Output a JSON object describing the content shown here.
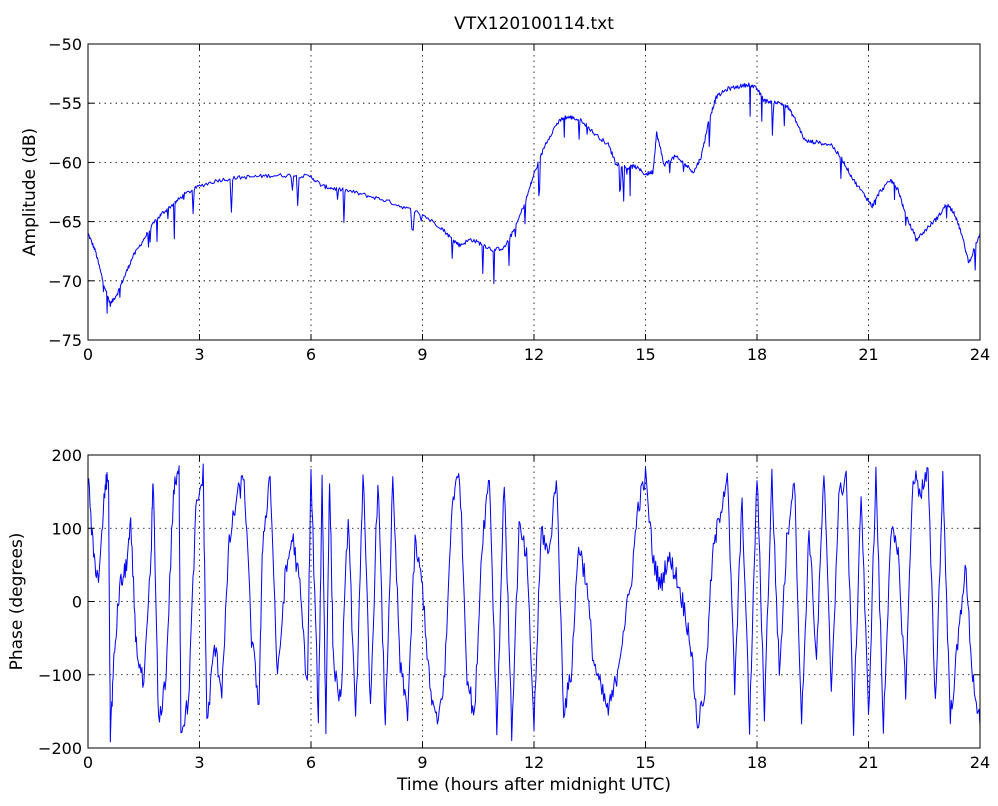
{
  "chart_data": [
    {
      "type": "line",
      "title": "VTX120100114.txt",
      "xlabel": "",
      "ylabel": "Amplitude (dB)",
      "xlim": [
        0,
        24
      ],
      "ylim": [
        -75,
        -50
      ],
      "xticks": [
        0,
        3,
        6,
        9,
        12,
        15,
        18,
        21,
        24
      ],
      "yticks": [
        -75,
        -70,
        -65,
        -60,
        -55,
        -50
      ],
      "xtick_labels": [
        "0",
        "3",
        "6",
        "9",
        "12",
        "15",
        "18",
        "21",
        "24"
      ],
      "ytick_labels": [
        "−75",
        "−70",
        "−65",
        "−60",
        "−55",
        "−50"
      ],
      "grid": true,
      "color": "#0000ff",
      "series": [
        {
          "x": [
            0,
            0.2,
            0.4,
            0.6,
            0.8,
            1.0,
            1.2,
            1.5,
            1.8,
            2.0,
            2.3,
            2.6,
            3.0,
            3.5,
            4.0,
            4.5,
            5.0,
            5.5,
            6.0,
            6.3,
            6.6,
            7.0,
            7.5,
            8.0,
            8.5,
            9.0,
            9.5,
            9.8,
            10.0,
            10.3,
            10.6,
            10.9,
            11.2,
            11.5,
            11.8,
            12.0,
            12.3,
            12.6,
            12.8,
            13.0,
            13.3,
            13.6,
            14.0,
            14.2,
            14.5,
            14.7,
            15.0,
            15.2,
            15.3,
            15.5,
            15.8,
            16.0,
            16.3,
            16.5,
            16.7,
            16.9,
            17.2,
            17.5,
            17.8,
            18.0,
            18.2,
            18.5,
            18.8,
            19.0,
            19.3,
            19.6,
            20.0,
            20.3,
            20.6,
            20.9,
            21.1,
            21.3,
            21.6,
            21.8,
            22.0,
            22.3,
            22.6,
            22.9,
            23.1,
            23.3,
            23.5,
            23.7,
            24.0
          ],
          "y": [
            -66,
            -67.5,
            -70,
            -72,
            -71,
            -69.5,
            -68,
            -66.5,
            -65,
            -64.3,
            -63.5,
            -62.7,
            -62,
            -61.5,
            -61.3,
            -61.2,
            -61.1,
            -61.1,
            -61.2,
            -62,
            -62.2,
            -62.4,
            -62.8,
            -63.2,
            -63.8,
            -64.4,
            -65.5,
            -66.5,
            -67,
            -66.5,
            -66.9,
            -67.4,
            -67.2,
            -65.5,
            -63,
            -61,
            -58.5,
            -56.8,
            -56.2,
            -56.2,
            -56.5,
            -57.5,
            -58.5,
            -60,
            -60.5,
            -60.3,
            -61,
            -60.8,
            -57.5,
            -60.2,
            -59.5,
            -60,
            -60.8,
            -59.5,
            -56.5,
            -54.5,
            -53.8,
            -53.6,
            -53.4,
            -53.8,
            -54.8,
            -54.9,
            -55.2,
            -56.2,
            -58.2,
            -58.3,
            -58.5,
            -59.8,
            -61.5,
            -62.8,
            -63.7,
            -62.5,
            -61.5,
            -62.3,
            -64.5,
            -66.5,
            -65.5,
            -64.5,
            -63.5,
            -64.2,
            -66,
            -68.5,
            -66
          ]
        }
      ]
    },
    {
      "type": "line",
      "title": "",
      "xlabel": "Time (hours after midnight UTC)",
      "ylabel": "Phase (degrees)",
      "xlim": [
        0,
        24
      ],
      "ylim": [
        -200,
        200
      ],
      "xticks": [
        0,
        3,
        6,
        9,
        12,
        15,
        18,
        21,
        24
      ],
      "yticks": [
        -200,
        -100,
        0,
        100,
        200
      ],
      "xtick_labels": [
        "0",
        "3",
        "6",
        "9",
        "12",
        "15",
        "18",
        "21",
        "24"
      ],
      "ytick_labels": [
        "−200",
        "−100",
        "0",
        "100",
        "200"
      ],
      "grid": true,
      "color": "#0000ff",
      "series": [
        {
          "x": [
            0,
            0.15,
            0.3,
            0.45,
            0.55,
            0.6,
            0.7,
            0.85,
            1.0,
            1.15,
            1.3,
            1.5,
            1.7,
            1.75,
            1.9,
            2.1,
            2.3,
            2.45,
            2.5,
            2.7,
            2.9,
            3.1,
            3.2,
            3.4,
            3.6,
            3.8,
            4.0,
            4.2,
            4.4,
            4.6,
            4.7,
            4.9,
            5.1,
            5.3,
            5.5,
            5.7,
            5.9,
            6.0,
            6.2,
            6.3,
            6.4,
            6.5,
            6.6,
            6.8,
            7.0,
            7.2,
            7.4,
            7.6,
            7.8,
            8.0,
            8.2,
            8.4,
            8.6,
            8.8,
            9.0,
            9.2,
            9.4,
            9.6,
            9.8,
            10.0,
            10.2,
            10.4,
            10.6,
            10.8,
            11.0,
            11.2,
            11.4,
            11.6,
            11.8,
            12.0,
            12.2,
            12.4,
            12.6,
            12.8,
            13.0,
            13.2,
            13.4,
            13.6,
            13.8,
            14.0,
            14.2,
            14.4,
            14.6,
            14.8,
            15.0,
            15.2,
            15.4,
            15.6,
            15.8,
            16.0,
            16.2,
            16.4,
            16.6,
            16.8,
            17.0,
            17.2,
            17.4,
            17.6,
            17.8,
            18.0,
            18.2,
            18.4,
            18.6,
            18.8,
            19.0,
            19.2,
            19.4,
            19.6,
            19.8,
            20.0,
            20.2,
            20.4,
            20.6,
            20.8,
            21.0,
            21.2,
            21.4,
            21.6,
            21.8,
            22.0,
            22.2,
            22.4,
            22.6,
            22.8,
            23.0,
            23.2,
            23.4,
            23.6,
            23.8,
            24.0
          ],
          "y": [
            170,
            60,
            30,
            150,
            175,
            -180,
            -80,
            20,
            40,
            100,
            -60,
            -120,
            60,
            175,
            -170,
            -100,
            150,
            175,
            -175,
            -140,
            120,
            175,
            -170,
            -60,
            -120,
            80,
            140,
            170,
            -50,
            -140,
            80,
            175,
            -110,
            30,
            90,
            20,
            -120,
            175,
            -160,
            170,
            -175,
            175,
            -80,
            -140,
            120,
            -170,
            175,
            -150,
            170,
            -170,
            160,
            -90,
            -150,
            80,
            20,
            -120,
            -170,
            -100,
            140,
            175,
            -100,
            -160,
            80,
            175,
            -175,
            170,
            -180,
            100,
            60,
            -170,
            100,
            60,
            175,
            -150,
            -100,
            80,
            30,
            -80,
            -120,
            -150,
            -110,
            -40,
            20,
            130,
            170,
            60,
            20,
            60,
            40,
            0,
            -50,
            -170,
            -120,
            60,
            120,
            175,
            -120,
            140,
            -170,
            175,
            -150,
            170,
            -100,
            80,
            175,
            -170,
            100,
            -80,
            175,
            -120,
            140,
            175,
            -170,
            150,
            -160,
            175,
            -175,
            100,
            60,
            -120,
            175,
            150,
            175,
            -140,
            170,
            -160,
            -60,
            50,
            -100,
            -170
          ],
          "note_style": "dense wrapped phase trace"
        }
      ]
    }
  ]
}
